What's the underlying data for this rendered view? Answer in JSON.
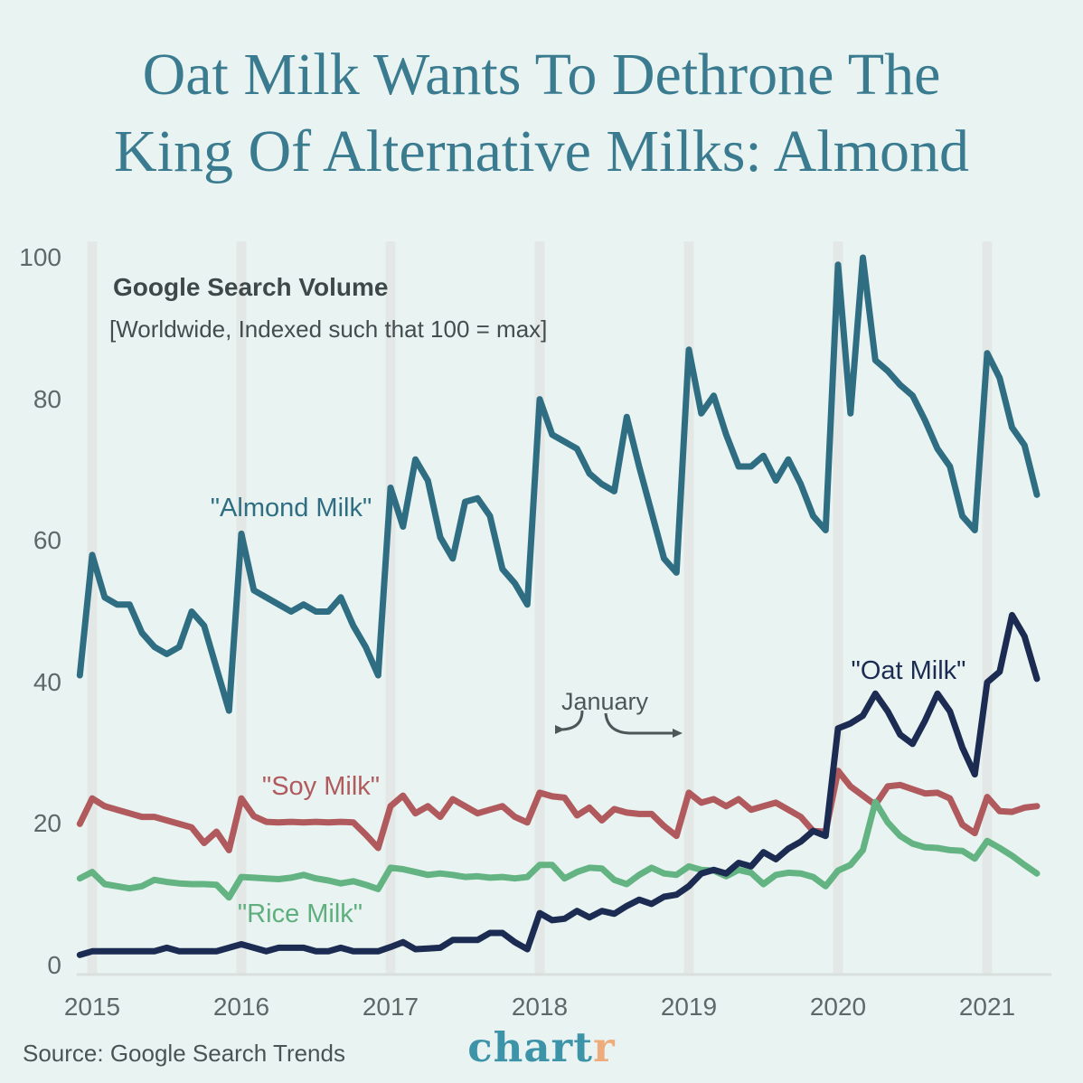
{
  "title": {
    "line1": "Oat Milk Wants To Dethrone The",
    "line2": "King Of Alternative Milks: Almond"
  },
  "colors": {
    "background": "#e9f4f2",
    "title_text": "#3a7b90",
    "january_band": "#e3e7e5",
    "axis_line": "#d8dfdd",
    "annotation": "#4d5757",
    "almond": "#2f6e82",
    "oat": "#1c2b52",
    "soy": "#b05a5e",
    "rice": "#63b383",
    "logo_teal": "#3d93a8",
    "logo_orange": "#eeab7b"
  },
  "chart_data": {
    "type": "line",
    "title": "Google Search Volume",
    "subtitle": "[Worldwide, Indexed such that 100 = max]",
    "x_start": "2014-12",
    "x_end": "2021-05",
    "x_unit": "month",
    "x_tick_labels": [
      "2015",
      "2016",
      "2017",
      "2018",
      "2019",
      "2020",
      "2021"
    ],
    "y_ticks": [
      100,
      80,
      60,
      40,
      20,
      0
    ],
    "ylim": [
      0,
      100
    ],
    "grid": "vertical gray bands at each January",
    "legend_position": "labels drawn next to lines",
    "annotations": {
      "january_label": "January",
      "arrows": "point to January 2018 and January 2019 bands"
    },
    "series": [
      {
        "name": "\"Soy Milk\"",
        "key": "soy",
        "color": "#b05a5e",
        "values": [
          20,
          23.6,
          22.5,
          22,
          21.5,
          21,
          21,
          20.5,
          20,
          19.5,
          17.3,
          18.9,
          16.3,
          23.6,
          21.1,
          20.3,
          20.2,
          20.3,
          20.2,
          20.3,
          20.2,
          20.3,
          20.2,
          18.5,
          16.6,
          22.5,
          24,
          21.5,
          22.5,
          21,
          23.5,
          22.5,
          21.5,
          22,
          22.5,
          21,
          20.2,
          24.4,
          23.9,
          23.7,
          21.2,
          22.3,
          20.5,
          22.1,
          21.6,
          21.4,
          21.4,
          19.7,
          18.3,
          24.4,
          23,
          23.5,
          22.5,
          23.5,
          22,
          22.5,
          23,
          22,
          21,
          19,
          18.9,
          27.5,
          25.3,
          24,
          22.7,
          25.3,
          25.5,
          24.9,
          24.3,
          24.4,
          23.6,
          19.9,
          18.7,
          23.8,
          21.8,
          21.7,
          22.3,
          22.5
        ]
      },
      {
        "name": "\"Rice Milk\"",
        "key": "rice",
        "color": "#63b383",
        "values": [
          12.3,
          13.2,
          11.5,
          11.2,
          10.9,
          11.2,
          12.1,
          11.8,
          11.6,
          11.5,
          11.5,
          11.4,
          9.6,
          12.5,
          12.4,
          12.3,
          12.2,
          12.4,
          12.8,
          12.3,
          12,
          11.6,
          11.9,
          11.4,
          10.8,
          13.8,
          13.6,
          13.2,
          12.8,
          13,
          12.8,
          12.5,
          12.6,
          12.4,
          12.5,
          12.3,
          12.5,
          14.2,
          14.2,
          12.3,
          13.2,
          13.8,
          13.7,
          12.1,
          11.5,
          12.8,
          13.8,
          13,
          12.8,
          14,
          13.5,
          13.4,
          12.6,
          13.5,
          13.1,
          11.5,
          12.8,
          13.1,
          13,
          12.5,
          11.2,
          13.4,
          14.2,
          16.3,
          23.1,
          20.2,
          18.3,
          17.2,
          16.7,
          16.6,
          16.3,
          16.2,
          15.1,
          17.6,
          16.6,
          15.5,
          14.2,
          13
        ]
      },
      {
        "name": "\"Almond Milk\"",
        "key": "almond",
        "color": "#2f6e82",
        "values": [
          41,
          58,
          52,
          51,
          51,
          47,
          45,
          44,
          45,
          50,
          48,
          42,
          36,
          61,
          53,
          52,
          51,
          50,
          51,
          50,
          50,
          52,
          48,
          45,
          41,
          67.5,
          62,
          71.5,
          68.5,
          60.5,
          57.5,
          65.5,
          66,
          63.5,
          56,
          54,
          51,
          80,
          75,
          74,
          73,
          69.5,
          68,
          67,
          77.5,
          70.5,
          64,
          57.5,
          55.5,
          87,
          78,
          80.5,
          75,
          70.5,
          70.5,
          72,
          68.5,
          71.5,
          68,
          63.5,
          61.5,
          99,
          78,
          100,
          85.5,
          84,
          82,
          80.5,
          77,
          73,
          70.5,
          63.5,
          61.5,
          86.5,
          83,
          76,
          73.5,
          66.5
        ]
      },
      {
        "name": "\"Oat Milk\"",
        "key": "oat",
        "color": "#1c2b52",
        "values": [
          1.5,
          2,
          2,
          2,
          2,
          2,
          2,
          2.5,
          2,
          2,
          2,
          2,
          2.5,
          3,
          2.5,
          2,
          2.5,
          2.5,
          2.5,
          2,
          2,
          2.5,
          2,
          2,
          2,
          2.6,
          3.3,
          2.3,
          2.4,
          2.5,
          3.6,
          3.6,
          3.6,
          4.6,
          4.6,
          3.3,
          2.3,
          7.4,
          6.4,
          6.6,
          7.7,
          6.8,
          7.7,
          7.3,
          8.4,
          9.3,
          8.7,
          9.7,
          10,
          11.2,
          13,
          13.5,
          13,
          14.5,
          14,
          16,
          15,
          16.5,
          17.5,
          19,
          18.3,
          33.5,
          34.2,
          35.3,
          38.4,
          35.9,
          32.6,
          31.3,
          34.6,
          38.4,
          35.9,
          30.8,
          27,
          40,
          41.5,
          49.5,
          46.5,
          40.5
        ]
      }
    ]
  },
  "footer": {
    "source": "Source: Google Search Trends",
    "logo_part1": "chart",
    "logo_part2": "r"
  }
}
